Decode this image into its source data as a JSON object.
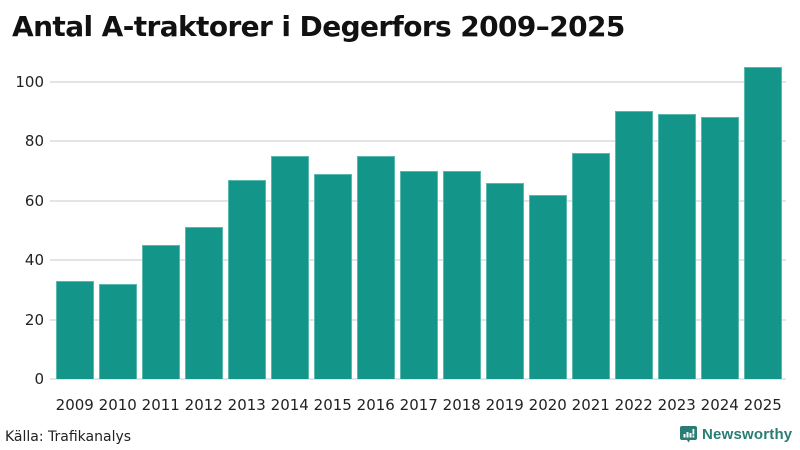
{
  "title": "Antal A-traktorer i Degerfors 2009–2025",
  "source": "Källa: Trafikanalys",
  "brand": {
    "name": "Newsworthy",
    "icon": "newsworthy-logo-icon",
    "color": "#2a7d75"
  },
  "colors": {
    "bar": "#13958a",
    "grid": "#e3e3e8"
  },
  "y_ticks": [
    "0",
    "20",
    "40",
    "60",
    "80",
    "100"
  ],
  "chart_data": {
    "type": "bar",
    "title": "Antal A-traktorer i Degerfors 2009–2025",
    "xlabel": "",
    "ylabel": "",
    "categories": [
      "2009",
      "2010",
      "2011",
      "2012",
      "2013",
      "2014",
      "2015",
      "2016",
      "2017",
      "2018",
      "2019",
      "2020",
      "2021",
      "2022",
      "2023",
      "2024",
      "2025"
    ],
    "values": [
      33,
      32,
      45,
      51,
      67,
      75,
      69,
      75,
      70,
      70,
      66,
      62,
      76,
      90,
      89,
      88,
      105
    ],
    "ylim": [
      0,
      105
    ],
    "yticks": [
      0,
      20,
      40,
      60,
      80,
      100
    ],
    "grid": true,
    "legend": null,
    "source": "Källa: Trafikanalys"
  }
}
